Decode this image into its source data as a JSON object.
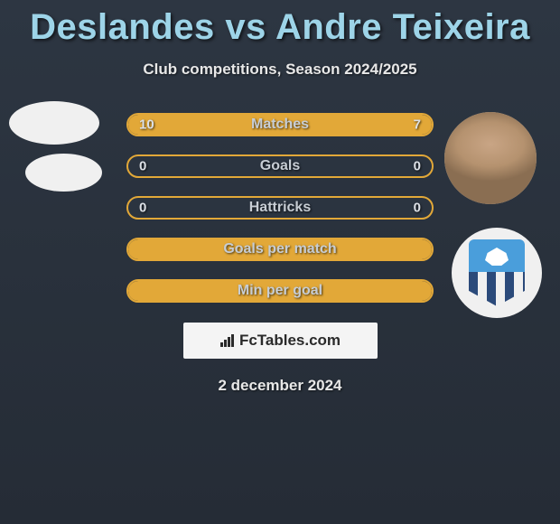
{
  "title": "Deslandes vs Andre Teixeira",
  "subtitle": "Club competitions, Season 2024/2025",
  "date": "2 december 2024",
  "logo_text": "FcTables.com",
  "colors": {
    "title": "#9dd4e8",
    "text": "#e8e8e8",
    "bar_border": "#e2a838",
    "bar_fill": "#e2a838",
    "bar_bg": "#2b3440",
    "bg_top": "#2d3642",
    "bg_bottom": "#252c36",
    "logo_bg": "#f4f4f4",
    "shield_top": "#4a9edb",
    "shield_stripe_dark": "#2b4a7a"
  },
  "bars": [
    {
      "label": "Matches",
      "left": "10",
      "right": "7",
      "left_pct": 58.8,
      "right_pct": 41.2,
      "show_vals": true
    },
    {
      "label": "Goals",
      "left": "0",
      "right": "0",
      "left_pct": 0,
      "right_pct": 0,
      "show_vals": true
    },
    {
      "label": "Hattricks",
      "left": "0",
      "right": "0",
      "left_pct": 0,
      "right_pct": 0,
      "show_vals": true
    },
    {
      "label": "Goals per match",
      "left": "",
      "right": "",
      "left_pct": 100,
      "right_pct": 0,
      "show_vals": false
    },
    {
      "label": "Min per goal",
      "left": "",
      "right": "",
      "left_pct": 100,
      "right_pct": 0,
      "show_vals": false
    }
  ]
}
